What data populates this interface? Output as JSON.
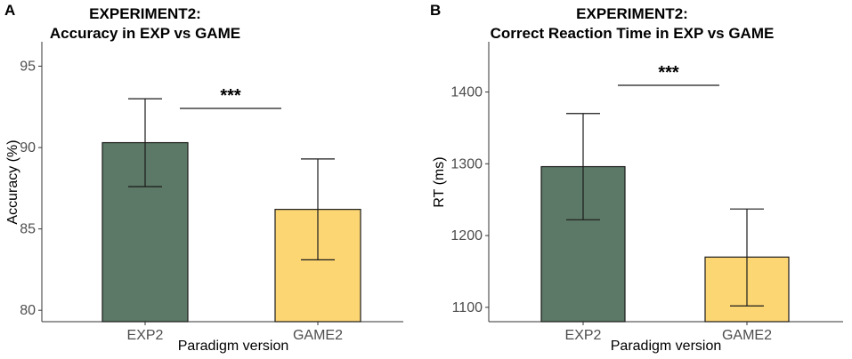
{
  "chart_data": [
    {
      "type": "bar",
      "panel": "A",
      "title_line1": "EXPERIMENT2:",
      "title_line2": "Accuracy in EXP vs GAME",
      "xlabel": "Paradigm version",
      "ylabel": "Accuracy (%)",
      "categories": [
        "EXP2",
        "GAME2"
      ],
      "values": [
        90.3,
        86.2
      ],
      "error_low": [
        87.6,
        83.1
      ],
      "error_high": [
        93.0,
        89.3
      ],
      "colors": [
        "#5c7866",
        "#fdd674"
      ],
      "ylim": [
        79.3,
        96.5
      ],
      "yticks": [
        80,
        85,
        90,
        95
      ],
      "significance": "***"
    },
    {
      "type": "bar",
      "panel": "B",
      "title_line1": "EXPERIMENT2:",
      "title_line2": "Correct Reaction Time in EXP vs GAME",
      "xlabel": "Paradigm version",
      "ylabel": "RT (ms)",
      "categories": [
        "EXP2",
        "GAME2"
      ],
      "values": [
        1296,
        1170
      ],
      "error_low": [
        1222,
        1102
      ],
      "error_high": [
        1370,
        1237
      ],
      "colors": [
        "#5c7866",
        "#fdd674"
      ],
      "ylim": [
        1080,
        1470
      ],
      "yticks": [
        1100,
        1200,
        1300,
        1400
      ],
      "significance": "***"
    }
  ]
}
